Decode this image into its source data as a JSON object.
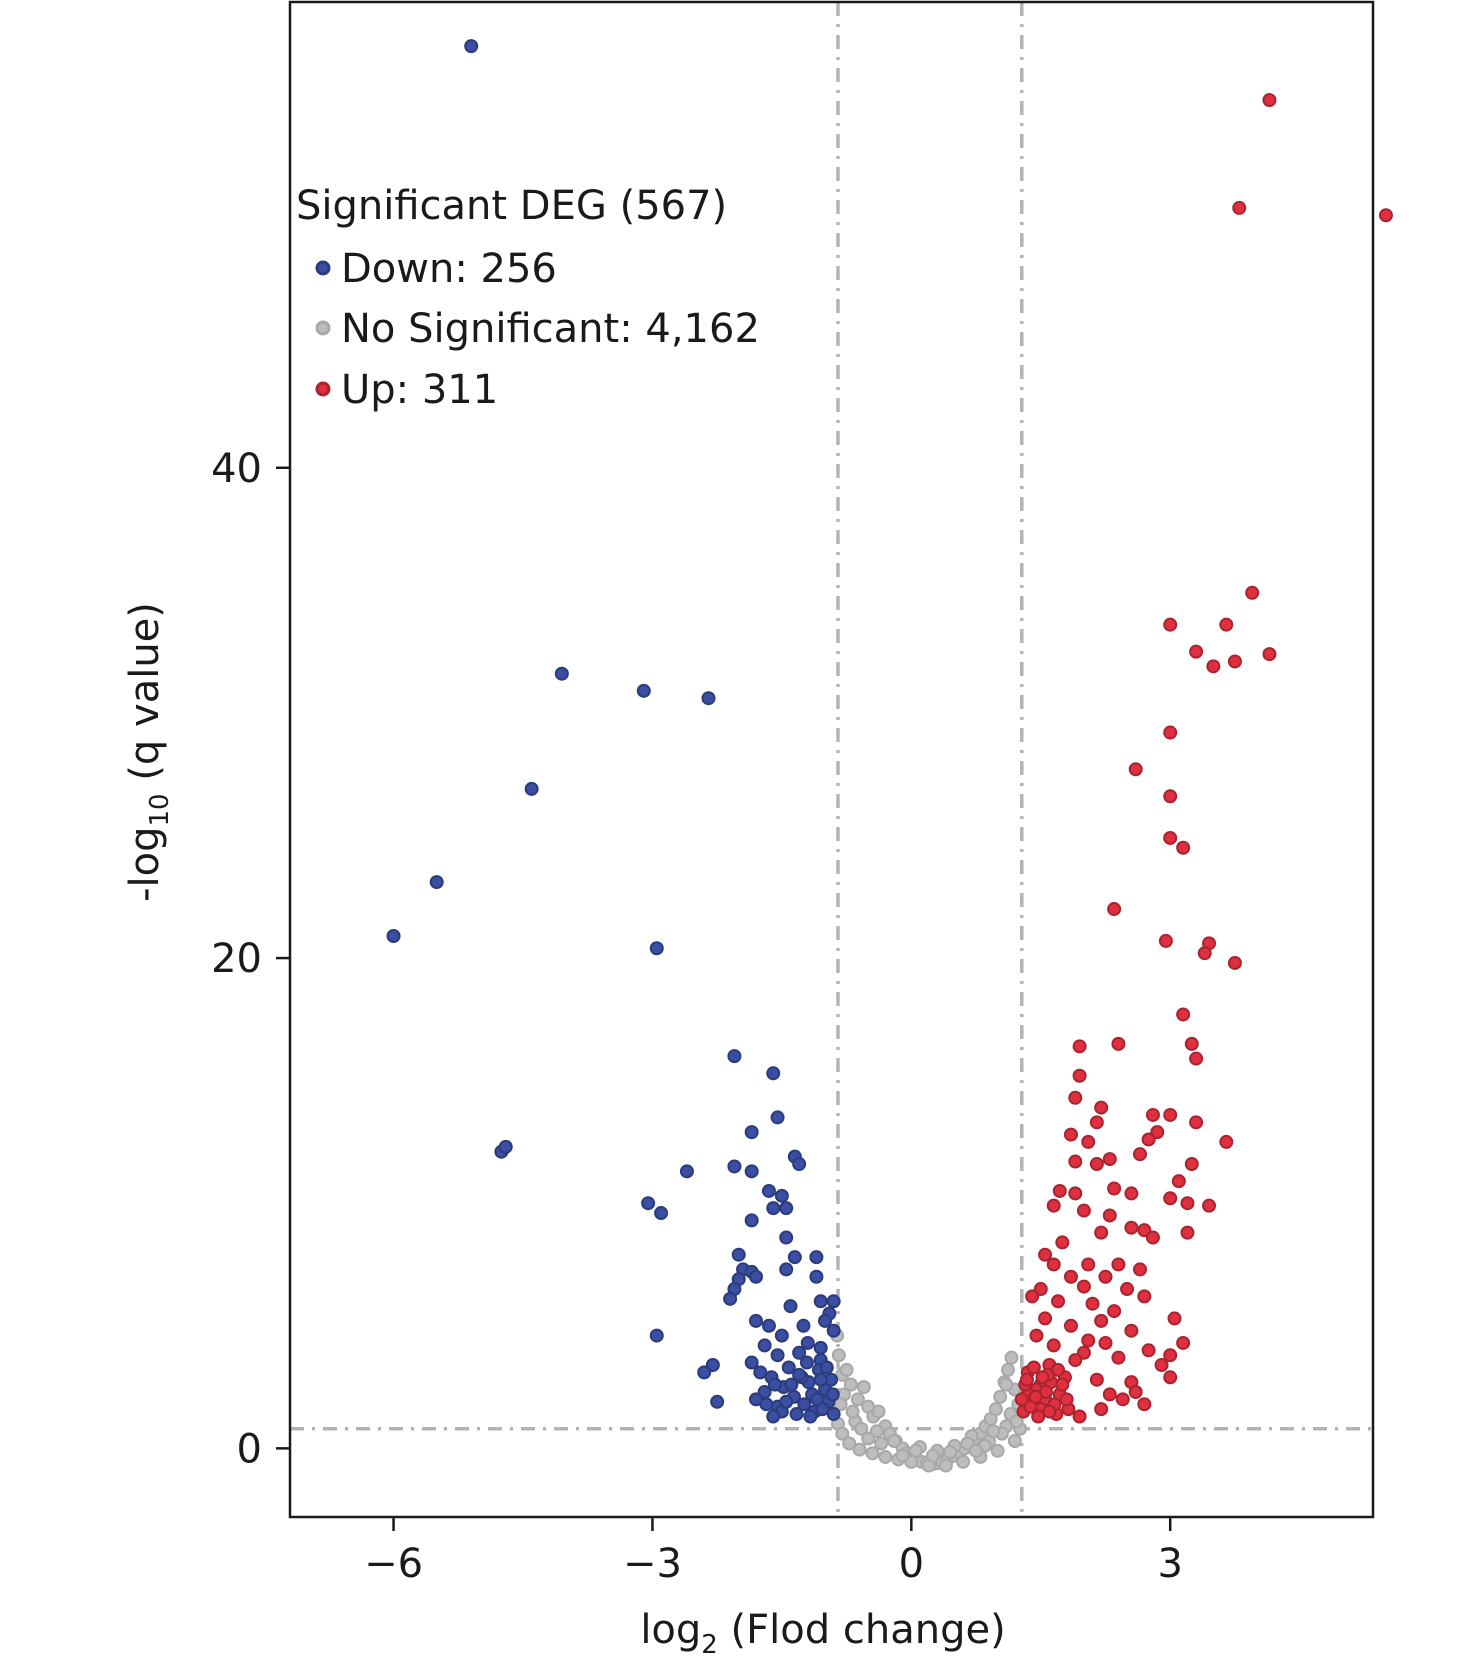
{
  "chart_data": {
    "type": "scatter",
    "xlabel": {
      "prefix": "log",
      "sub": "2",
      "suffix": " (Flod change)"
    },
    "ylabel": {
      "prefix": "-log",
      "sub": "10",
      "suffix": " (q value)"
    },
    "x_ticks": [
      -6,
      -3,
      0,
      3
    ],
    "x_tick_labels": [
      "−6",
      "−3",
      "0",
      "3"
    ],
    "y_ticks": [
      0,
      20,
      40
    ],
    "y_tick_labels": [
      "0",
      "20",
      "40"
    ],
    "xlim": [
      -7.2,
      5.35
    ],
    "ylim": [
      -2.8,
      59.0
    ],
    "grid": false,
    "thresholds": {
      "x_left": -0.85,
      "x_right": 1.28,
      "y": 0.8
    },
    "legend": {
      "title": "Significant DEG (567)",
      "position": "top-left",
      "entries": [
        {
          "label": "Down: 256",
          "series": "down"
        },
        {
          "label": "No Significant: 4,162",
          "series": "ns"
        },
        {
          "label": "Up: 311",
          "series": "up"
        }
      ]
    },
    "colors": {
      "down": "#3a4fa3",
      "ns": "#bdbdbd",
      "up": "#e03040",
      "threshold": "#b3b3b3"
    },
    "series": [
      {
        "name": "Down",
        "key": "down",
        "points": [
          [
            -5.1,
            57.2
          ],
          [
            -4.05,
            31.6
          ],
          [
            -3.1,
            30.9
          ],
          [
            -2.35,
            30.6
          ],
          [
            -4.4,
            26.9
          ],
          [
            -5.5,
            23.1
          ],
          [
            -6.0,
            20.9
          ],
          [
            -2.95,
            20.4
          ],
          [
            -4.75,
            12.1
          ],
          [
            -4.7,
            12.3
          ],
          [
            -2.6,
            11.3
          ],
          [
            -3.05,
            10.0
          ],
          [
            -2.9,
            9.6
          ],
          [
            -2.95,
            4.6
          ],
          [
            -2.05,
            16.0
          ],
          [
            -1.6,
            15.3
          ],
          [
            -1.55,
            13.5
          ],
          [
            -1.85,
            12.9
          ],
          [
            -1.35,
            11.9
          ],
          [
            -1.3,
            11.6
          ],
          [
            -2.05,
            11.5
          ],
          [
            -1.85,
            11.3
          ],
          [
            -1.65,
            10.5
          ],
          [
            -1.5,
            10.3
          ],
          [
            -1.45,
            9.8
          ],
          [
            -1.6,
            9.8
          ],
          [
            -1.85,
            9.3
          ],
          [
            -1.45,
            8.6
          ],
          [
            -2.0,
            7.9
          ],
          [
            -1.35,
            7.8
          ],
          [
            -1.1,
            7.8
          ],
          [
            -1.95,
            7.3
          ],
          [
            -1.85,
            7.2
          ],
          [
            -1.8,
            7.0
          ],
          [
            -2.0,
            6.9
          ],
          [
            -1.45,
            7.3
          ],
          [
            -2.05,
            6.5
          ],
          [
            -1.1,
            7.0
          ],
          [
            -2.1,
            6.1
          ],
          [
            -0.9,
            6.0
          ],
          [
            -1.4,
            5.8
          ],
          [
            -1.05,
            6.0
          ],
          [
            -0.95,
            5.5
          ],
          [
            -1.8,
            5.2
          ],
          [
            -1.65,
            5.0
          ],
          [
            -1.25,
            5.0
          ],
          [
            -1.0,
            5.2
          ],
          [
            -1.5,
            4.6
          ],
          [
            -0.9,
            4.8
          ],
          [
            -1.7,
            4.2
          ],
          [
            -1.2,
            4.3
          ],
          [
            -1.05,
            4.1
          ],
          [
            -1.55,
            3.8
          ],
          [
            -1.3,
            3.9
          ],
          [
            -1.85,
            3.5
          ],
          [
            -2.3,
            3.4
          ],
          [
            -2.4,
            3.1
          ],
          [
            -1.05,
            3.6
          ],
          [
            -2.25,
            1.9
          ],
          [
            -1.7,
            2.3
          ],
          [
            -1.55,
            1.7
          ],
          [
            -1.75,
            3.1
          ],
          [
            -1.62,
            2.9
          ],
          [
            -1.48,
            2.5
          ],
          [
            -1.36,
            2.1
          ],
          [
            -1.24,
            1.8
          ],
          [
            -1.12,
            1.5
          ],
          [
            -1.0,
            2.4
          ],
          [
            -0.93,
            2.8
          ],
          [
            -1.68,
            1.8
          ],
          [
            -1.58,
            2.6
          ],
          [
            -1.42,
            3.3
          ],
          [
            -1.33,
            1.4
          ],
          [
            -1.19,
            2.7
          ],
          [
            -1.07,
            3.2
          ],
          [
            -0.96,
            1.9
          ],
          [
            -1.8,
            2.0
          ],
          [
            -1.5,
            1.5
          ],
          [
            -1.27,
            2.9
          ],
          [
            -1.15,
            2.2
          ],
          [
            -1.03,
            1.6
          ],
          [
            -0.91,
            2.2
          ],
          [
            -1.39,
            2.6
          ],
          [
            -1.21,
            3.5
          ],
          [
            -1.09,
            2.0
          ],
          [
            -0.98,
            3.3
          ],
          [
            -1.6,
            1.3
          ],
          [
            -1.45,
            1.9
          ],
          [
            -1.3,
            3.0
          ],
          [
            -1.17,
            1.3
          ],
          [
            -1.05,
            2.8
          ],
          [
            -0.9,
            1.4
          ]
        ]
      },
      {
        "name": "No Significant",
        "key": "ns",
        "points": [
          [
            -0.86,
            4.6
          ],
          [
            -0.84,
            3.8
          ],
          [
            -0.8,
            3.0
          ],
          [
            -0.75,
            3.2
          ],
          [
            -0.7,
            2.6
          ],
          [
            -0.62,
            2.0
          ],
          [
            -0.55,
            2.5
          ],
          [
            -0.5,
            1.7
          ],
          [
            -0.44,
            1.3
          ],
          [
            -0.38,
            1.5
          ],
          [
            -0.3,
            0.9
          ],
          [
            -0.25,
            0.6
          ],
          [
            -0.18,
            0.3
          ],
          [
            -0.1,
            0.0
          ],
          [
            -0.05,
            -0.2
          ],
          [
            0.0,
            -0.3
          ],
          [
            0.05,
            -0.4
          ],
          [
            0.12,
            -0.55
          ],
          [
            0.18,
            -0.6
          ],
          [
            0.24,
            -0.65
          ],
          [
            0.3,
            -0.6
          ],
          [
            0.36,
            -0.55
          ],
          [
            0.42,
            -0.45
          ],
          [
            0.5,
            -0.3
          ],
          [
            0.56,
            -0.2
          ],
          [
            0.62,
            0.0
          ],
          [
            0.68,
            0.2
          ],
          [
            0.74,
            0.4
          ],
          [
            0.8,
            0.6
          ],
          [
            0.86,
            0.9
          ],
          [
            0.92,
            1.2
          ],
          [
            0.98,
            1.6
          ],
          [
            1.03,
            2.1
          ],
          [
            1.08,
            2.7
          ],
          [
            1.12,
            3.2
          ],
          [
            1.16,
            3.7
          ],
          [
            1.2,
            2.4
          ],
          [
            1.24,
            1.8
          ],
          [
            -0.85,
            1.0
          ],
          [
            -0.8,
            0.6
          ],
          [
            -0.72,
            0.2
          ],
          [
            -0.6,
            -0.05
          ],
          [
            -0.45,
            -0.2
          ],
          [
            -0.3,
            -0.35
          ],
          [
            -0.15,
            -0.45
          ],
          [
            0.0,
            -0.55
          ],
          [
            0.2,
            -0.7
          ],
          [
            0.4,
            -0.7
          ],
          [
            0.6,
            -0.55
          ],
          [
            0.8,
            -0.35
          ],
          [
            1.0,
            -0.1
          ],
          [
            1.2,
            0.3
          ],
          [
            1.26,
            0.8
          ],
          [
            -0.65,
            1.1
          ],
          [
            -0.4,
            0.7
          ],
          [
            -0.2,
            0.3
          ],
          [
            0.1,
            0.05
          ],
          [
            0.3,
            -0.1
          ],
          [
            0.5,
            0.1
          ],
          [
            0.7,
            0.5
          ],
          [
            0.9,
            0.3
          ],
          [
            1.1,
            0.9
          ],
          [
            -0.5,
            0.4
          ],
          [
            -0.35,
            0.2
          ],
          [
            0.05,
            -0.1
          ],
          [
            0.25,
            -0.3
          ],
          [
            0.45,
            -0.15
          ],
          [
            0.65,
            0.2
          ],
          [
            0.85,
            0.1
          ],
          [
            1.05,
            0.6
          ],
          [
            -0.78,
            2.2
          ],
          [
            -0.68,
            1.5
          ],
          [
            1.15,
            1.4
          ],
          [
            1.22,
            1.1
          ],
          [
            -0.82,
            1.8
          ],
          [
            1.1,
            2.6
          ],
          [
            0.95,
            0.7
          ],
          [
            -0.58,
            0.8
          ],
          [
            0.75,
            -0.1
          ],
          [
            -0.1,
            -0.3
          ]
        ]
      },
      {
        "name": "Up",
        "key": "up",
        "points": [
          [
            4.15,
            55.0
          ],
          [
            3.8,
            50.6
          ],
          [
            5.5,
            50.3
          ],
          [
            3.95,
            34.9
          ],
          [
            3.0,
            33.6
          ],
          [
            3.65,
            33.6
          ],
          [
            3.3,
            32.5
          ],
          [
            4.15,
            32.4
          ],
          [
            3.75,
            32.1
          ],
          [
            3.5,
            31.9
          ],
          [
            3.0,
            29.2
          ],
          [
            2.6,
            27.7
          ],
          [
            3.0,
            26.6
          ],
          [
            3.0,
            24.9
          ],
          [
            3.15,
            24.5
          ],
          [
            2.35,
            22.0
          ],
          [
            3.45,
            20.6
          ],
          [
            3.4,
            20.2
          ],
          [
            3.75,
            19.8
          ],
          [
            2.95,
            20.7
          ],
          [
            3.15,
            17.7
          ],
          [
            3.25,
            16.5
          ],
          [
            3.3,
            15.9
          ],
          [
            2.4,
            16.5
          ],
          [
            1.95,
            16.4
          ],
          [
            1.95,
            15.2
          ],
          [
            1.9,
            14.3
          ],
          [
            2.2,
            13.9
          ],
          [
            2.15,
            13.3
          ],
          [
            1.85,
            12.8
          ],
          [
            2.05,
            12.5
          ],
          [
            2.8,
            13.6
          ],
          [
            3.0,
            13.6
          ],
          [
            3.3,
            13.3
          ],
          [
            2.85,
            12.9
          ],
          [
            2.75,
            12.6
          ],
          [
            3.65,
            12.5
          ],
          [
            2.65,
            12.0
          ],
          [
            2.3,
            11.8
          ],
          [
            1.9,
            11.7
          ],
          [
            2.15,
            11.6
          ],
          [
            3.25,
            11.6
          ],
          [
            3.1,
            10.9
          ],
          [
            2.55,
            10.4
          ],
          [
            2.35,
            10.6
          ],
          [
            3.0,
            10.2
          ],
          [
            3.2,
            10.0
          ],
          [
            3.45,
            9.9
          ],
          [
            1.72,
            10.5
          ],
          [
            1.9,
            10.4
          ],
          [
            1.65,
            9.9
          ],
          [
            2.0,
            9.7
          ],
          [
            2.3,
            9.5
          ],
          [
            2.55,
            9.0
          ],
          [
            2.7,
            8.9
          ],
          [
            2.8,
            8.6
          ],
          [
            3.2,
            8.8
          ],
          [
            2.2,
            8.8
          ],
          [
            1.75,
            8.4
          ],
          [
            1.55,
            7.9
          ],
          [
            1.65,
            7.5
          ],
          [
            2.05,
            7.5
          ],
          [
            2.25,
            7.0
          ],
          [
            2.4,
            7.5
          ],
          [
            2.65,
            7.3
          ],
          [
            1.85,
            7.0
          ],
          [
            2.0,
            6.6
          ],
          [
            2.5,
            6.5
          ],
          [
            2.7,
            6.2
          ],
          [
            1.5,
            6.5
          ],
          [
            1.7,
            6.0
          ],
          [
            2.1,
            5.9
          ],
          [
            2.35,
            5.6
          ],
          [
            1.4,
            6.2
          ],
          [
            1.55,
            5.3
          ],
          [
            1.85,
            5.0
          ],
          [
            2.2,
            5.2
          ],
          [
            2.55,
            4.8
          ],
          [
            3.05,
            5.3
          ],
          [
            1.45,
            4.6
          ],
          [
            1.65,
            4.2
          ],
          [
            2.05,
            4.4
          ],
          [
            2.25,
            4.3
          ],
          [
            2.0,
            3.9
          ],
          [
            2.4,
            3.7
          ],
          [
            3.15,
            4.3
          ],
          [
            2.75,
            4.0
          ],
          [
            3.0,
            3.8
          ],
          [
            2.9,
            3.4
          ],
          [
            3.0,
            2.9
          ],
          [
            1.9,
            3.6
          ],
          [
            1.6,
            3.4
          ],
          [
            1.35,
            3.1
          ],
          [
            1.5,
            2.6
          ],
          [
            1.78,
            2.9
          ],
          [
            2.15,
            2.8
          ],
          [
            2.55,
            2.7
          ],
          [
            2.3,
            2.2
          ],
          [
            2.6,
            2.3
          ],
          [
            2.45,
            2.0
          ],
          [
            2.7,
            1.8
          ],
          [
            2.2,
            1.6
          ],
          [
            1.95,
            1.3
          ],
          [
            1.82,
            1.6
          ],
          [
            1.3,
            1.5
          ],
          [
            1.4,
            1.9
          ],
          [
            1.55,
            2.0
          ],
          [
            1.68,
            1.4
          ],
          [
            1.45,
            2.4
          ],
          [
            1.62,
            2.7
          ],
          [
            1.35,
            2.2
          ],
          [
            1.72,
            2.2
          ],
          [
            1.5,
            1.6
          ],
          [
            1.32,
            2.6
          ],
          [
            1.58,
            3.0
          ],
          [
            1.42,
            3.3
          ],
          [
            1.66,
            1.8
          ],
          [
            1.38,
            1.7
          ],
          [
            1.52,
            2.9
          ],
          [
            1.7,
            3.2
          ],
          [
            1.28,
            2.0
          ],
          [
            1.6,
            1.5
          ],
          [
            1.47,
            1.3
          ],
          [
            1.75,
            2.6
          ],
          [
            1.34,
            2.8
          ],
          [
            1.56,
            2.3
          ],
          [
            1.8,
            2.0
          ],
          [
            1.44,
            2.1
          ]
        ]
      }
    ]
  }
}
